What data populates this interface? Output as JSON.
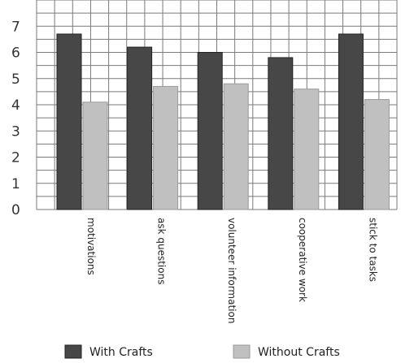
{
  "chart_data": {
    "type": "bar",
    "title": "",
    "xlabel": "",
    "ylabel": "",
    "categories": [
      "motivations",
      "ask questions",
      "volunteer information",
      "cooperative work",
      "stick to tasks"
    ],
    "series": [
      {
        "name": "With Crafts",
        "values": [
          6.7,
          6.2,
          6.0,
          5.8,
          6.7
        ],
        "color": "#474747"
      },
      {
        "name": "Without Crafts",
        "values": [
          4.1,
          4.7,
          4.8,
          4.6,
          4.2
        ],
        "color": "#c0c0c0"
      }
    ],
    "y_ticks": [
      "0",
      "1",
      "2",
      "3",
      "4",
      "5",
      "6",
      "7"
    ],
    "ylim": [
      0,
      8
    ],
    "grid": true,
    "legend_position": "bottom"
  }
}
